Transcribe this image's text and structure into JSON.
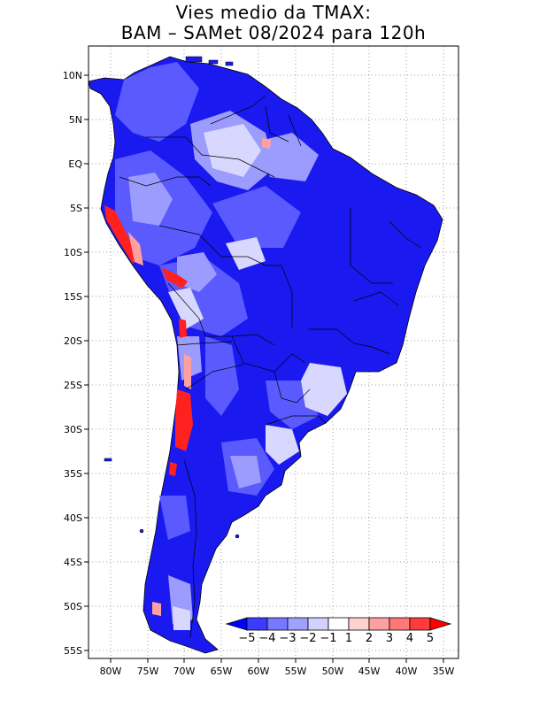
{
  "title": {
    "line1": "Vies medio da TMAX:",
    "line2": "BAM – SAMet 08/2024  para 120h"
  },
  "map": {
    "region": "South America",
    "lat_labels": [
      "10N",
      "5N",
      "EQ",
      "5S",
      "10S",
      "15S",
      "20S",
      "25S",
      "30S",
      "35S",
      "40S",
      "45S",
      "50S",
      "55S"
    ],
    "lon_labels": [
      "80W",
      "75W",
      "70W",
      "65W",
      "60W",
      "55W",
      "50W",
      "45W",
      "40W",
      "35W"
    ],
    "gridlines": "dotted"
  },
  "colorbar": {
    "labels": [
      "−5",
      "−4",
      "−3",
      "−2",
      "−1",
      "1",
      "2",
      "3",
      "4",
      "5"
    ],
    "colors": [
      "#0000ff",
      "#3c3cff",
      "#7878ff",
      "#a0a0ff",
      "#d2d2ff",
      "#ffffff",
      "#ffd2d2",
      "#ffa0a0",
      "#ff7878",
      "#ff3c3c",
      "#ff0000"
    ]
  },
  "palette": {
    "strong_blue": "#1010f0",
    "medium_blue": "#5a5aff",
    "light_blue": "#9c9cff",
    "pale_blue": "#d2d2ff",
    "red": "#ff2020",
    "pink": "#ffa0a0"
  }
}
